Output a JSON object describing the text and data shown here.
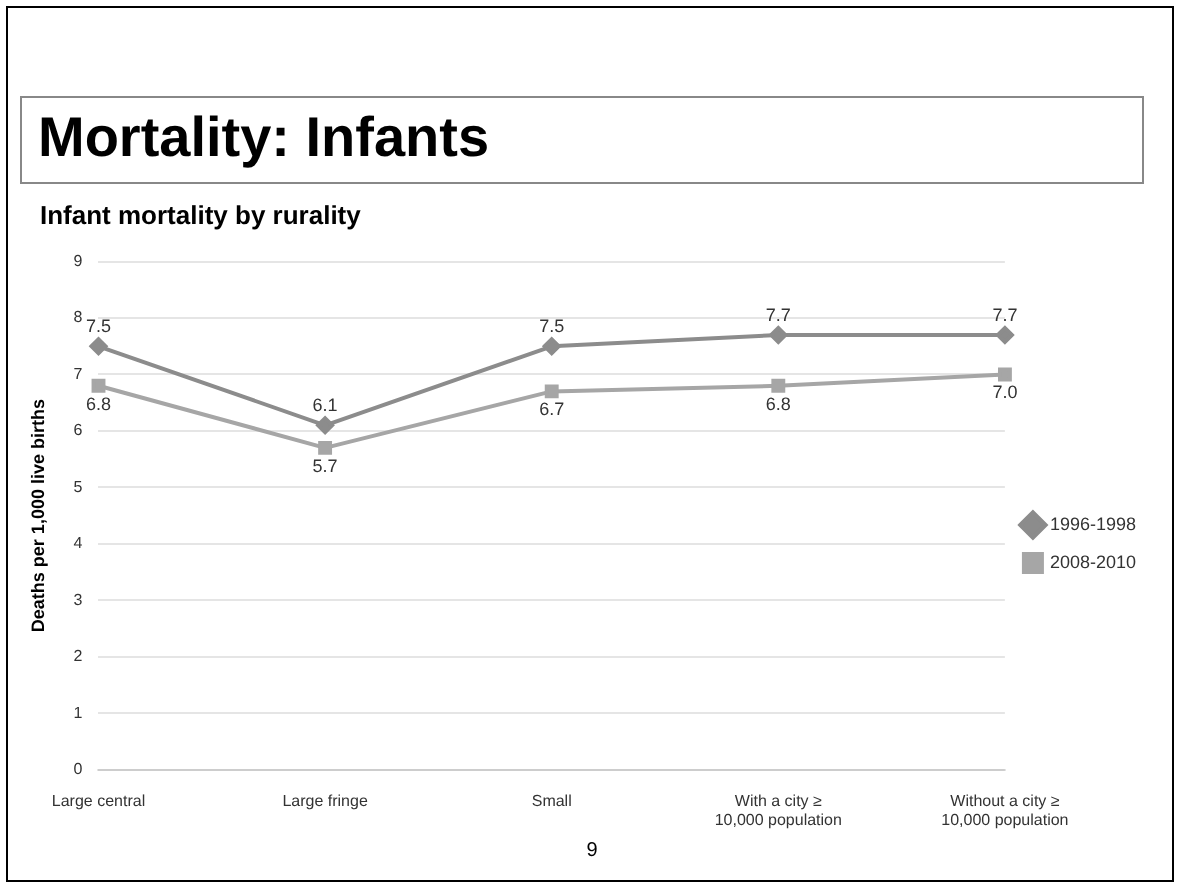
{
  "chart_data": {
    "type": "line",
    "title": "Mortality: Infants",
    "subtitle": "Infant mortality by rurality",
    "ylabel": "Deaths per 1,000 live births",
    "categories": [
      "Large central",
      "Large fringe",
      "Small",
      "With a city ≥ 10,000 population",
      "Without a city ≥ 10,000 population"
    ],
    "series": [
      {
        "name": "1996-1998",
        "color": "#8c8c8c",
        "values": [
          7.5,
          6.1,
          7.5,
          7.7,
          7.7
        ],
        "value_labels": [
          "7.5",
          "6.1",
          "7.5",
          "7.7",
          "7.7"
        ],
        "marker": "diamond"
      },
      {
        "name": "2008-2010",
        "color": "#a6a6a6",
        "values": [
          6.8,
          5.7,
          6.7,
          6.8,
          7.0
        ],
        "value_labels": [
          "6.8",
          "5.7",
          "6.7",
          "6.8",
          "7.0"
        ],
        "marker": "square"
      }
    ],
    "ylim": [
      0,
      9
    ],
    "yticks": [
      0,
      1,
      2,
      3,
      4,
      5,
      6,
      7,
      8,
      9
    ],
    "grid": "y",
    "legend": "right",
    "line_style": "solid",
    "annotations": [
      "9"
    ]
  }
}
